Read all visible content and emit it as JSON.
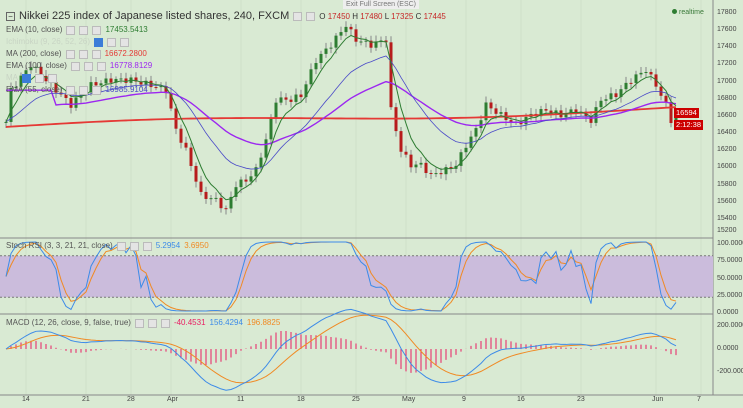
{
  "header": {
    "title": "Nikkei 225 index of Japanese listed shares, 240, FXCM",
    "o_label": "O",
    "o": "17450",
    "h_label": "H",
    "h": "17480",
    "l_label": "L",
    "l": "17325",
    "c_label": "C",
    "c": "17445",
    "exit_tip": "Exit Full Screen (ESC)",
    "realtime": "realtime"
  },
  "legends": [
    {
      "label": "EMA (10, close)",
      "value": "17453.5413",
      "color": "#2e7d32"
    },
    {
      "label": "Ichimoku (9, 26, 52, 26)",
      "value": "",
      "color": "#aaa"
    },
    {
      "label": "MA (200, close)",
      "value": "16672.2800",
      "color": "#e53935"
    },
    {
      "label": "EMA (100, close)",
      "value": "16778.8129",
      "color": "#9c27f0"
    },
    {
      "label": "MA",
      "value": "",
      "color": "#aaa"
    },
    {
      "label": "EMA (55, close)",
      "value": "16985.9104",
      "color": "#4a4ac8"
    }
  ],
  "price_tag": "16594",
  "countdown": "2:12:38",
  "stoch": {
    "label": "Stoch RSI (3, 3, 21, 21, close)",
    "k": "5.2954",
    "d": "3.6950",
    "colors": {
      "k": "#3d8be8",
      "d": "#f08a24"
    }
  },
  "macd": {
    "label": "MACD (12, 26, close, 9, false, true)",
    "hist": "-40.4531",
    "macd": "156.4294",
    "signal": "196.8825"
  },
  "chart_data": {
    "type": "candlestick",
    "title": "Nikkei 225 index of Japanese listed shares, 240, FXCM",
    "y_ticks": [
      "17800",
      "17600",
      "17400",
      "17200",
      "17000",
      "16800",
      "16600",
      "16400",
      "16200",
      "16000",
      "15800",
      "15600",
      "15400",
      "15200"
    ],
    "ylim": [
      15200,
      17850
    ],
    "stoch_ticks": [
      "100.0000",
      "75.0000",
      "50.0000",
      "25.0000",
      "0.0000"
    ],
    "macd_ticks": [
      "200.0000",
      "0.0000",
      "-200.0000"
    ],
    "x_ticks": [
      {
        "label": "14",
        "bar": 4
      },
      {
        "label": "21",
        "bar": 16
      },
      {
        "label": "28",
        "bar": 25
      },
      {
        "label": "Apr",
        "bar": 33
      },
      {
        "label": "11",
        "bar": 47
      },
      {
        "label": "18",
        "bar": 59
      },
      {
        "label": "25",
        "bar": 70
      },
      {
        "label": "May",
        "bar": 80
      },
      {
        "label": "9",
        "bar": 92
      },
      {
        "label": "16",
        "bar": 103
      },
      {
        "label": "23",
        "bar": 115
      },
      {
        "label": "Jun",
        "bar": 130
      },
      {
        "label": "7",
        "bar": 139
      }
    ],
    "bars": 135,
    "close_keypoints": [
      [
        0,
        16530
      ],
      [
        1,
        16900
      ],
      [
        5,
        17200
      ],
      [
        9,
        16960
      ],
      [
        13,
        16730
      ],
      [
        17,
        16960
      ],
      [
        21,
        17020
      ],
      [
        25,
        17020
      ],
      [
        29,
        16960
      ],
      [
        32,
        16900
      ],
      [
        34,
        16440
      ],
      [
        36,
        16200
      ],
      [
        39,
        15680
      ],
      [
        42,
        15620
      ],
      [
        44,
        15500
      ],
      [
        46,
        15800
      ],
      [
        48,
        15850
      ],
      [
        50,
        15970
      ],
      [
        52,
        16320
      ],
      [
        54,
        16790
      ],
      [
        57,
        16790
      ],
      [
        59,
        16840
      ],
      [
        62,
        17250
      ],
      [
        65,
        17430
      ],
      [
        68,
        17660
      ],
      [
        70,
        17490
      ],
      [
        73,
        17430
      ],
      [
        76,
        17490
      ],
      [
        77,
        16670
      ],
      [
        79,
        16200
      ],
      [
        81,
        16030
      ],
      [
        83,
        16030
      ],
      [
        85,
        15910
      ],
      [
        88,
        15970
      ],
      [
        90,
        16030
      ],
      [
        92,
        16260
      ],
      [
        94,
        16440
      ],
      [
        96,
        16730
      ],
      [
        99,
        16610
      ],
      [
        102,
        16500
      ],
      [
        105,
        16610
      ],
      [
        108,
        16670
      ],
      [
        111,
        16610
      ],
      [
        114,
        16670
      ],
      [
        117,
        16550
      ],
      [
        119,
        16790
      ],
      [
        122,
        16850
      ],
      [
        125,
        17020
      ],
      [
        128,
        17140
      ],
      [
        130,
        16960
      ],
      [
        132,
        16730
      ],
      [
        133,
        16550
      ],
      [
        134,
        16610
      ]
    ],
    "ma200_level": 16672
  }
}
